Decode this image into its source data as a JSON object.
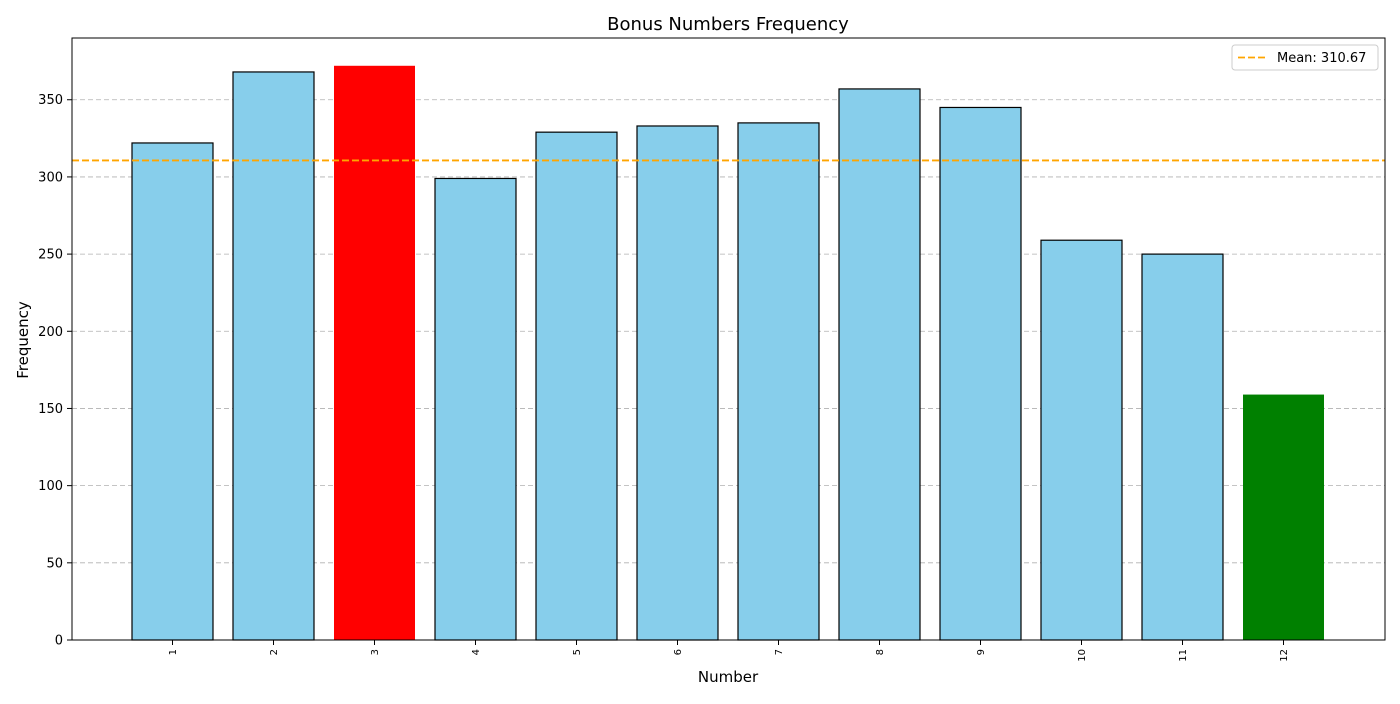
{
  "chart_data": {
    "type": "bar",
    "title": "Bonus Numbers Frequency",
    "xlabel": "Number",
    "ylabel": "Frequency",
    "categories": [
      "1",
      "2",
      "3",
      "4",
      "5",
      "6",
      "7",
      "8",
      "9",
      "10",
      "11",
      "12"
    ],
    "values": [
      322,
      368,
      372,
      299,
      329,
      333,
      335,
      357,
      345,
      259,
      250,
      159
    ],
    "bar_colors": [
      "#87CEEB",
      "#87CEEB",
      "#FF0000",
      "#87CEEB",
      "#87CEEB",
      "#87CEEB",
      "#87CEEB",
      "#87CEEB",
      "#87CEEB",
      "#87CEEB",
      "#87CEEB",
      "#008000"
    ],
    "bar_edge_color": "#000000",
    "ylim": [
      0,
      390
    ],
    "yticks": [
      0,
      50,
      100,
      150,
      200,
      250,
      300,
      350
    ],
    "grid": "y-dashed",
    "mean": {
      "value": 310.67,
      "label": "Mean: 310.67",
      "color": "#FFA500",
      "style": "dashed"
    },
    "legend_position": "top-right"
  }
}
